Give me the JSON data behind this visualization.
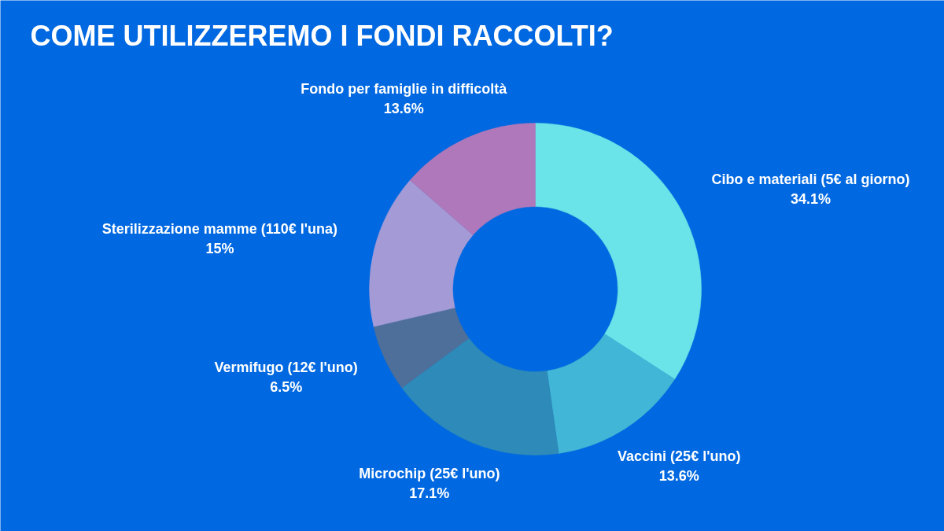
{
  "chart_data": {
    "type": "donut",
    "title": "COME UTILIZZEREMO I FONDI RACCOLTI?",
    "categories": [
      "Cibo e materiali (5€ al giorno)",
      "Vaccini (25€ l'uno)",
      "Microchip (25€ l'uno)",
      "Vermifugo (12€ l'uno)",
      "Sterilizzazione mamme (110€ l'una)",
      "Fondo per famiglie in difficoltà"
    ],
    "values": [
      34.1,
      13.6,
      17.1,
      6.5,
      15,
      13.6
    ],
    "colors": [
      "#6ae4e8",
      "#42b6d6",
      "#2d8ab9",
      "#4e6f9a",
      "#a49ad6",
      "#ae78ba"
    ],
    "value_labels": [
      "34.1%",
      "13.6%",
      "17.1%",
      "6.5%",
      "15%",
      "13.6%"
    ]
  }
}
